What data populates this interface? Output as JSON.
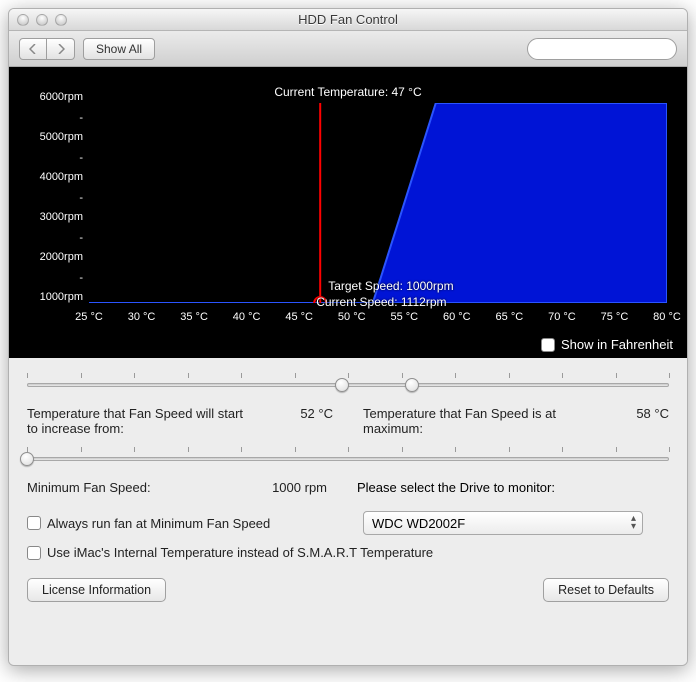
{
  "window": {
    "title": "HDD Fan Control"
  },
  "toolbar": {
    "show_all_label": "Show All",
    "search_placeholder": ""
  },
  "chart": {
    "type": "area",
    "title_prefix": "Current Temperature: ",
    "current_temperature": "47 °C",
    "target_speed_label": "Target Speed: 1000rpm",
    "current_speed_label": "Current Speed: 1112rpm",
    "x_axis": {
      "min": 25,
      "max": 80,
      "step": 5,
      "unit": "°C"
    },
    "y_axis": {
      "min": 1000,
      "max": 6000,
      "step": 1000,
      "unit": "rpm"
    },
    "curve_points_temp": [
      25,
      52,
      58,
      80
    ],
    "curve_points_rpm": [
      1000,
      1000,
      6000,
      6000
    ],
    "colors": {
      "background": "#000000",
      "area_fill": "#0014d6",
      "area_stroke": "#2a54ff",
      "cursor_line": "#ff0000",
      "cursor_ring": "#ff0000",
      "text": "#ffffff"
    },
    "current_temp_value": 47,
    "fahrenheit_label": "Show in Fahrenheit",
    "fahrenheit_checked": false
  },
  "controls": {
    "slider1": {
      "min": 25,
      "max": 80,
      "thumb1": 52,
      "thumb2": 58
    },
    "temp_start_label": "Temperature that Fan Speed will start to increase from:",
    "temp_start_value": "52 °C",
    "temp_max_label": "Temperature that Fan Speed is at maximum:",
    "temp_max_value": "58 °C",
    "slider2": {
      "min": 1000,
      "max": 6000,
      "value": 1000
    },
    "min_fan_label": "Minimum Fan Speed:",
    "min_fan_value": "1000  rpm",
    "drive_select_label": "Please select the Drive to monitor:",
    "drive_selected": "WDC WD2002F",
    "always_min_label": "Always run fan at Minimum Fan Speed",
    "always_min_checked": false,
    "use_internal_label": "Use iMac's Internal Temperature instead of S.M.A.R.T Temperature",
    "use_internal_checked": false,
    "license_btn": "License Information",
    "reset_btn": "Reset to Defaults"
  }
}
